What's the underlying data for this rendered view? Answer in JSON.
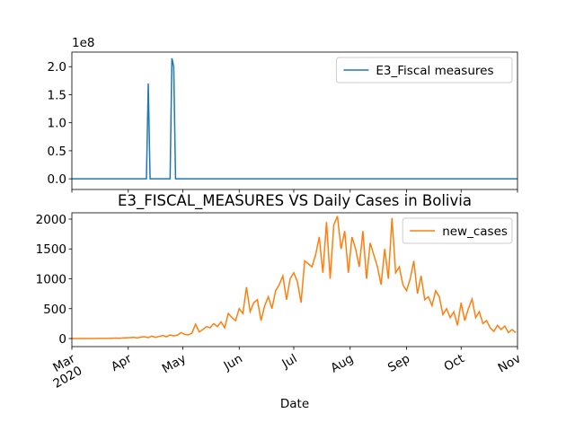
{
  "chart_data": [
    {
      "type": "line",
      "y_offset_label": "1e8",
      "x": [
        0,
        41,
        42,
        43,
        54,
        55,
        56,
        57,
        245
      ],
      "series": [
        {
          "name": "E3_Fiscal measures",
          "color": "#1f77b4",
          "values": [
            0,
            0,
            1.7,
            0,
            0,
            2.15,
            2.0,
            0,
            0
          ]
        }
      ],
      "xlim": [
        0,
        245
      ],
      "xticks": [
        {
          "value": 0,
          "label": "Mar\n2020"
        },
        {
          "value": 31,
          "label": "Apr"
        },
        {
          "value": 61,
          "label": "May"
        },
        {
          "value": 92,
          "label": "Jun"
        },
        {
          "value": 122,
          "label": "Jul"
        },
        {
          "value": 153,
          "label": "Aug"
        },
        {
          "value": 184,
          "label": "Sep"
        },
        {
          "value": 214,
          "label": "Oct"
        },
        {
          "value": 245,
          "label": "Nov"
        }
      ],
      "ylim": [
        -0.19,
        2.26
      ],
      "yticks": [
        {
          "value": 0,
          "label": "0.0"
        },
        {
          "value": 0.5,
          "label": "0.5"
        },
        {
          "value": 1,
          "label": "1.0"
        },
        {
          "value": 1.5,
          "label": "1.5"
        },
        {
          "value": 2,
          "label": "2.0"
        }
      ],
      "legend": "upper right"
    },
    {
      "type": "line",
      "title": "E3_FISCAL_MEASURES VS Daily Cases in Bolivia",
      "x_label": "Date",
      "x": [
        0,
        2,
        4,
        6,
        8,
        10,
        12,
        14,
        16,
        18,
        20,
        22,
        24,
        26,
        28,
        30,
        32,
        34,
        36,
        38,
        40,
        42,
        44,
        46,
        48,
        50,
        52,
        54,
        56,
        58,
        60,
        62,
        64,
        66,
        68,
        70,
        72,
        74,
        76,
        78,
        80,
        82,
        84,
        86,
        88,
        90,
        92,
        94,
        96,
        98,
        100,
        102,
        104,
        106,
        108,
        110,
        112,
        114,
        116,
        118,
        120,
        122,
        124,
        126,
        128,
        130,
        132,
        134,
        136,
        138,
        140,
        142,
        144,
        146,
        148,
        150,
        152,
        154,
        156,
        158,
        160,
        162,
        164,
        166,
        168,
        170,
        172,
        174,
        176,
        178,
        180,
        182,
        184,
        186,
        188,
        190,
        192,
        194,
        196,
        198,
        200,
        202,
        204,
        206,
        208,
        210,
        212,
        214,
        216,
        218,
        220,
        222,
        224,
        226,
        228,
        230,
        232,
        234,
        236,
        238,
        240,
        242,
        244
      ],
      "series": [
        {
          "name": "new_cases",
          "color": "#ff7f0e",
          "values": [
            0,
            0,
            0,
            0,
            0,
            0,
            1,
            2,
            2,
            3,
            3,
            5,
            8,
            5,
            10,
            12,
            15,
            20,
            10,
            25,
            30,
            15,
            40,
            20,
            35,
            50,
            30,
            60,
            45,
            55,
            100,
            70,
            60,
            90,
            240,
            110,
            150,
            200,
            180,
            250,
            200,
            280,
            180,
            420,
            350,
            300,
            500,
            420,
            860,
            450,
            600,
            650,
            300,
            550,
            700,
            500,
            800,
            900,
            1050,
            650,
            1000,
            1100,
            950,
            600,
            1300,
            1250,
            1200,
            1400,
            1700,
            1100,
            1950,
            1000,
            1900,
            2050,
            1500,
            1800,
            1100,
            1700,
            1500,
            1200,
            1800,
            1000,
            1600,
            1400,
            1200,
            900,
            1500,
            1000,
            2020,
            1100,
            1200,
            900,
            800,
            1000,
            1300,
            750,
            1050,
            650,
            700,
            550,
            800,
            700,
            400,
            500,
            350,
            450,
            220,
            600,
            300,
            500,
            660,
            350,
            450,
            250,
            300,
            180,
            120,
            220,
            150,
            210,
            100,
            150,
            100
          ]
        }
      ],
      "xlim": [
        0,
        245
      ],
      "xticks": [
        {
          "value": 0,
          "label": "Mar\n2020"
        },
        {
          "value": 31,
          "label": "Apr"
        },
        {
          "value": 61,
          "label": "May"
        },
        {
          "value": 92,
          "label": "Jun"
        },
        {
          "value": 122,
          "label": "Jul"
        },
        {
          "value": 153,
          "label": "Aug"
        },
        {
          "value": 184,
          "label": "Sep"
        },
        {
          "value": 214,
          "label": "Oct"
        },
        {
          "value": 245,
          "label": "Nov"
        }
      ],
      "ylim": [
        -135,
        2105
      ],
      "yticks": [
        0,
        500,
        1000,
        1500,
        2000
      ],
      "legend": "upper right"
    }
  ]
}
